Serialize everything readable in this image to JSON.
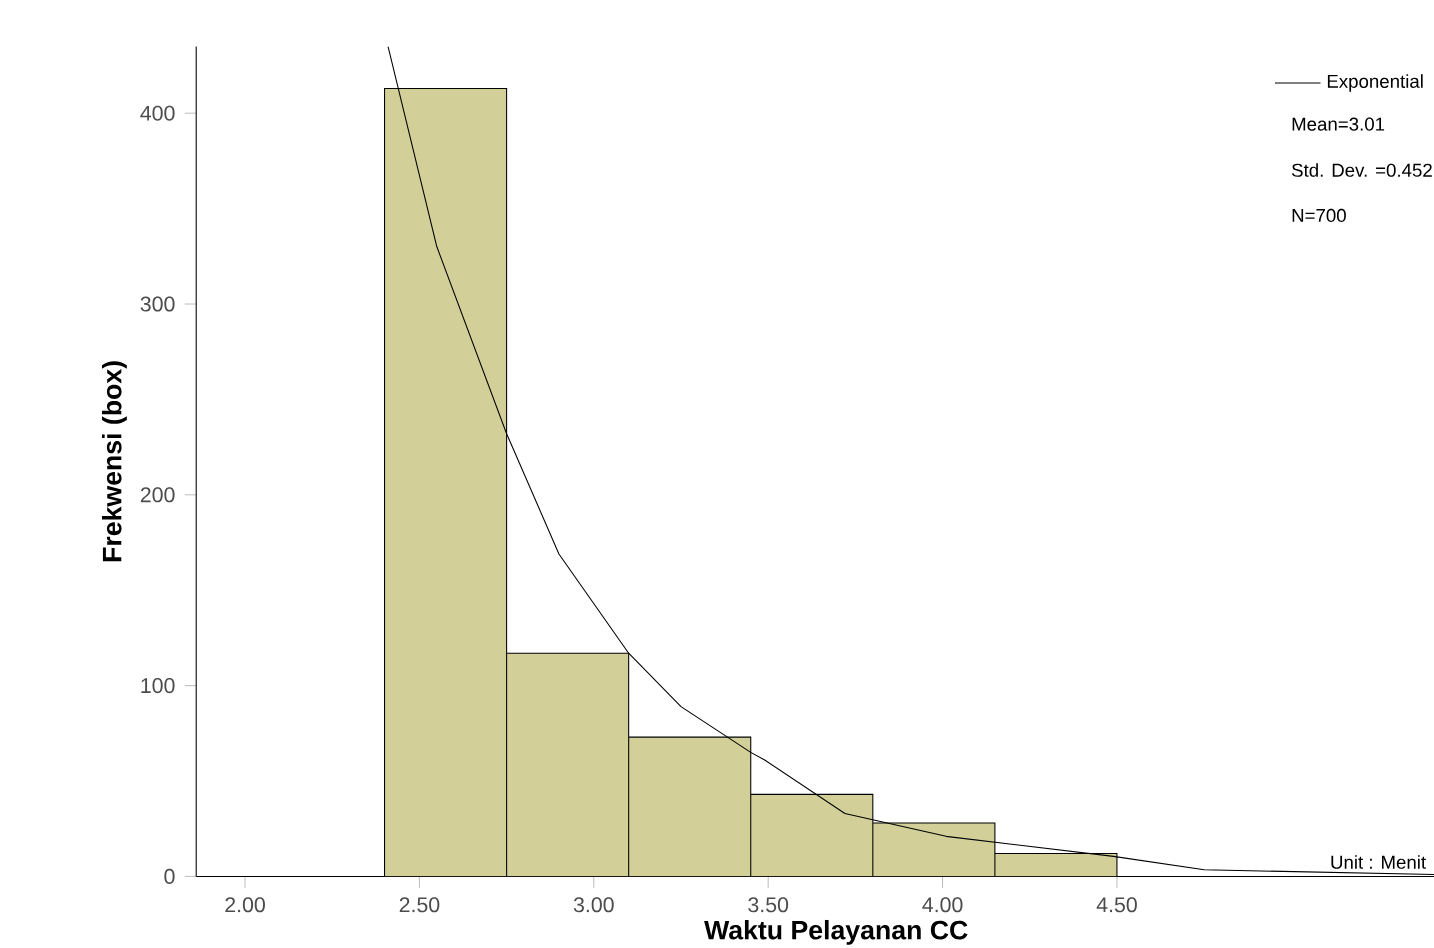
{
  "chart_data": {
    "type": "histogram",
    "xlabel": "Waktu Pelayanan CC",
    "ylabel": "Frekwensi (box)",
    "bins": [
      2.4,
      2.75,
      3.1,
      3.45,
      3.8,
      4.15,
      4.5
    ],
    "values": [
      413,
      117,
      73,
      43,
      28,
      12
    ],
    "color": "#d2cf98",
    "series": [
      {
        "type": "line",
        "name": "Exponential",
        "color": "#000000",
        "x": [
          2.41,
          2.55,
          2.75,
          2.9,
          3.1,
          3.25,
          3.45,
          3.49,
          3.72,
          4.01,
          4.49,
          4.75,
          5.48
        ],
        "values": [
          435,
          330,
          232,
          169,
          117,
          89,
          65,
          61,
          33,
          21,
          10.5,
          3.5,
          0.7
        ]
      }
    ],
    "xlim": [
      1.86,
      5.53
    ],
    "ylim": [
      0,
      435
    ],
    "xticks": [
      {
        "value": 2.0,
        "label": "2.00"
      },
      {
        "value": 2.5,
        "label": "2.50"
      },
      {
        "value": 3.0,
        "label": "3.00"
      },
      {
        "value": 3.5,
        "label": "3.50"
      },
      {
        "value": 4.0,
        "label": "4.00"
      },
      {
        "value": 4.5,
        "label": "4.50"
      }
    ],
    "yticks": [
      0,
      100,
      200,
      300,
      400
    ],
    "legend": "top right",
    "grid": false,
    "annotations": [
      "Mean=3.01",
      "Std. Dev. =0.452",
      "N=700",
      "Unit : Menit"
    ]
  }
}
